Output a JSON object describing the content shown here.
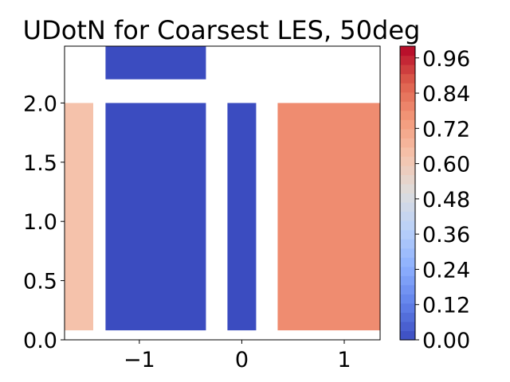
{
  "chart_data": {
    "type": "heatmap",
    "title": "UDotN for Coarsest LES, 50deg",
    "xlabel": "",
    "ylabel": "",
    "xlim": [
      -1.73,
      1.35
    ],
    "ylim": [
      0.0,
      2.48
    ],
    "grid": false,
    "x_ticks": [
      -1,
      0,
      1
    ],
    "x_tick_labels": [
      "−1",
      "0",
      "1"
    ],
    "y_ticks": [
      0.0,
      0.5,
      1.0,
      1.5,
      2.0
    ],
    "y_tick_labels": [
      "0.0",
      "0.5",
      "1.0",
      "1.5",
      "2.0"
    ],
    "patches": [
      {
        "x": [
          -1.73,
          -1.45
        ],
        "y": [
          0.08,
          2.0
        ],
        "value": 0.63
      },
      {
        "x": [
          -1.33,
          -0.35
        ],
        "y": [
          0.08,
          2.0
        ],
        "value": 0.0
      },
      {
        "x": [
          -1.33,
          -0.35
        ],
        "y": [
          2.2,
          2.48
        ],
        "value": 0.0
      },
      {
        "x": [
          -0.14,
          0.14
        ],
        "y": [
          0.08,
          2.0
        ],
        "value": 0.0
      },
      {
        "x": [
          0.35,
          1.35
        ],
        "y": [
          0.08,
          2.0
        ],
        "value": 0.78
      }
    ],
    "colorbar": {
      "range": [
        0.0,
        1.0
      ],
      "levels": 32,
      "colormap": "coolwarm",
      "tick_values": [
        0.0,
        0.12,
        0.24,
        0.36,
        0.48,
        0.6,
        0.72,
        0.84,
        0.96
      ],
      "tick_labels": [
        "0.00",
        "0.12",
        "0.24",
        "0.36",
        "0.48",
        "0.60",
        "0.72",
        "0.84",
        "0.96"
      ]
    }
  }
}
